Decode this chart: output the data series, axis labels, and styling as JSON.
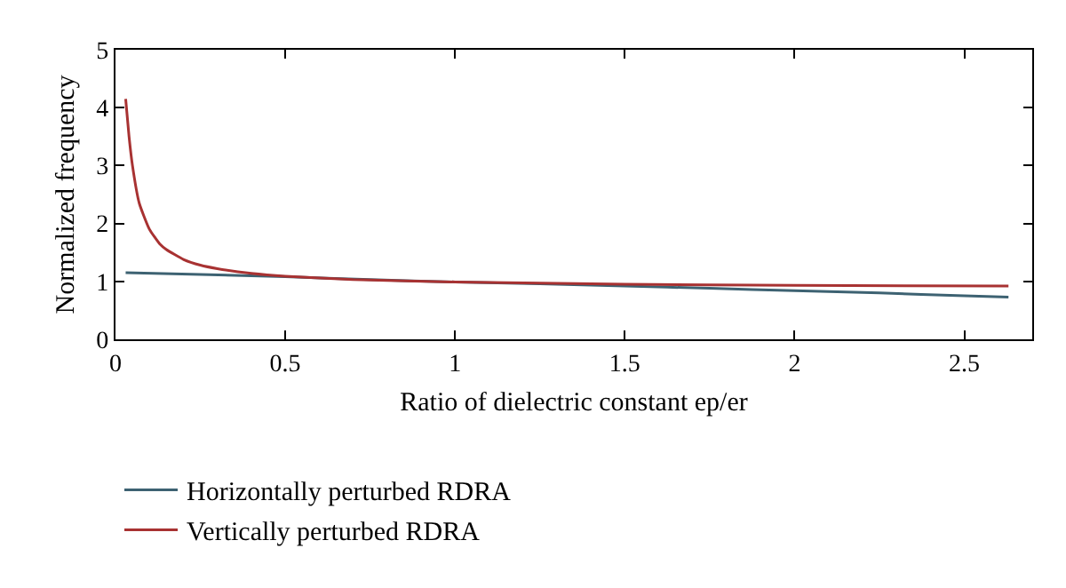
{
  "chart_data": {
    "type": "line",
    "xlabel": "Ratio of dielectric constant ep/er",
    "ylabel": "Normalized frequency",
    "xlim": [
      0,
      2.7
    ],
    "xticks": [
      0,
      0.5,
      1,
      1.5,
      2,
      2.5
    ],
    "ylim": [
      0,
      5
    ],
    "yticks": [
      0,
      1,
      2,
      3,
      4,
      5
    ],
    "legend": "bottom left",
    "marker": "none",
    "line_style": "solid",
    "series": [
      {
        "name": "Horizontally perturbed RDRA",
        "color": "#3d6272",
        "x": [
          0.03,
          0.25,
          0.5,
          0.75,
          1,
          1.25,
          1.5,
          1.75,
          2,
          2.25,
          2.5,
          2.63
        ],
        "values": [
          1.15,
          1.12,
          1.08,
          1.03,
          0.99,
          0.96,
          0.92,
          0.88,
          0.84,
          0.8,
          0.75,
          0.73
        ]
      },
      {
        "name": "Vertically perturbed RDRA",
        "color": "#a83232",
        "x": [
          0.03,
          0.04,
          0.05,
          0.07,
          0.1,
          0.13,
          0.15,
          0.2,
          0.25,
          0.3,
          0.4,
          0.5,
          0.7,
          1,
          1.5,
          2,
          2.63
        ],
        "values": [
          4.15,
          3.5,
          3.0,
          2.35,
          1.9,
          1.65,
          1.55,
          1.38,
          1.28,
          1.22,
          1.14,
          1.09,
          1.03,
          0.99,
          0.95,
          0.93,
          0.92
        ]
      }
    ]
  }
}
